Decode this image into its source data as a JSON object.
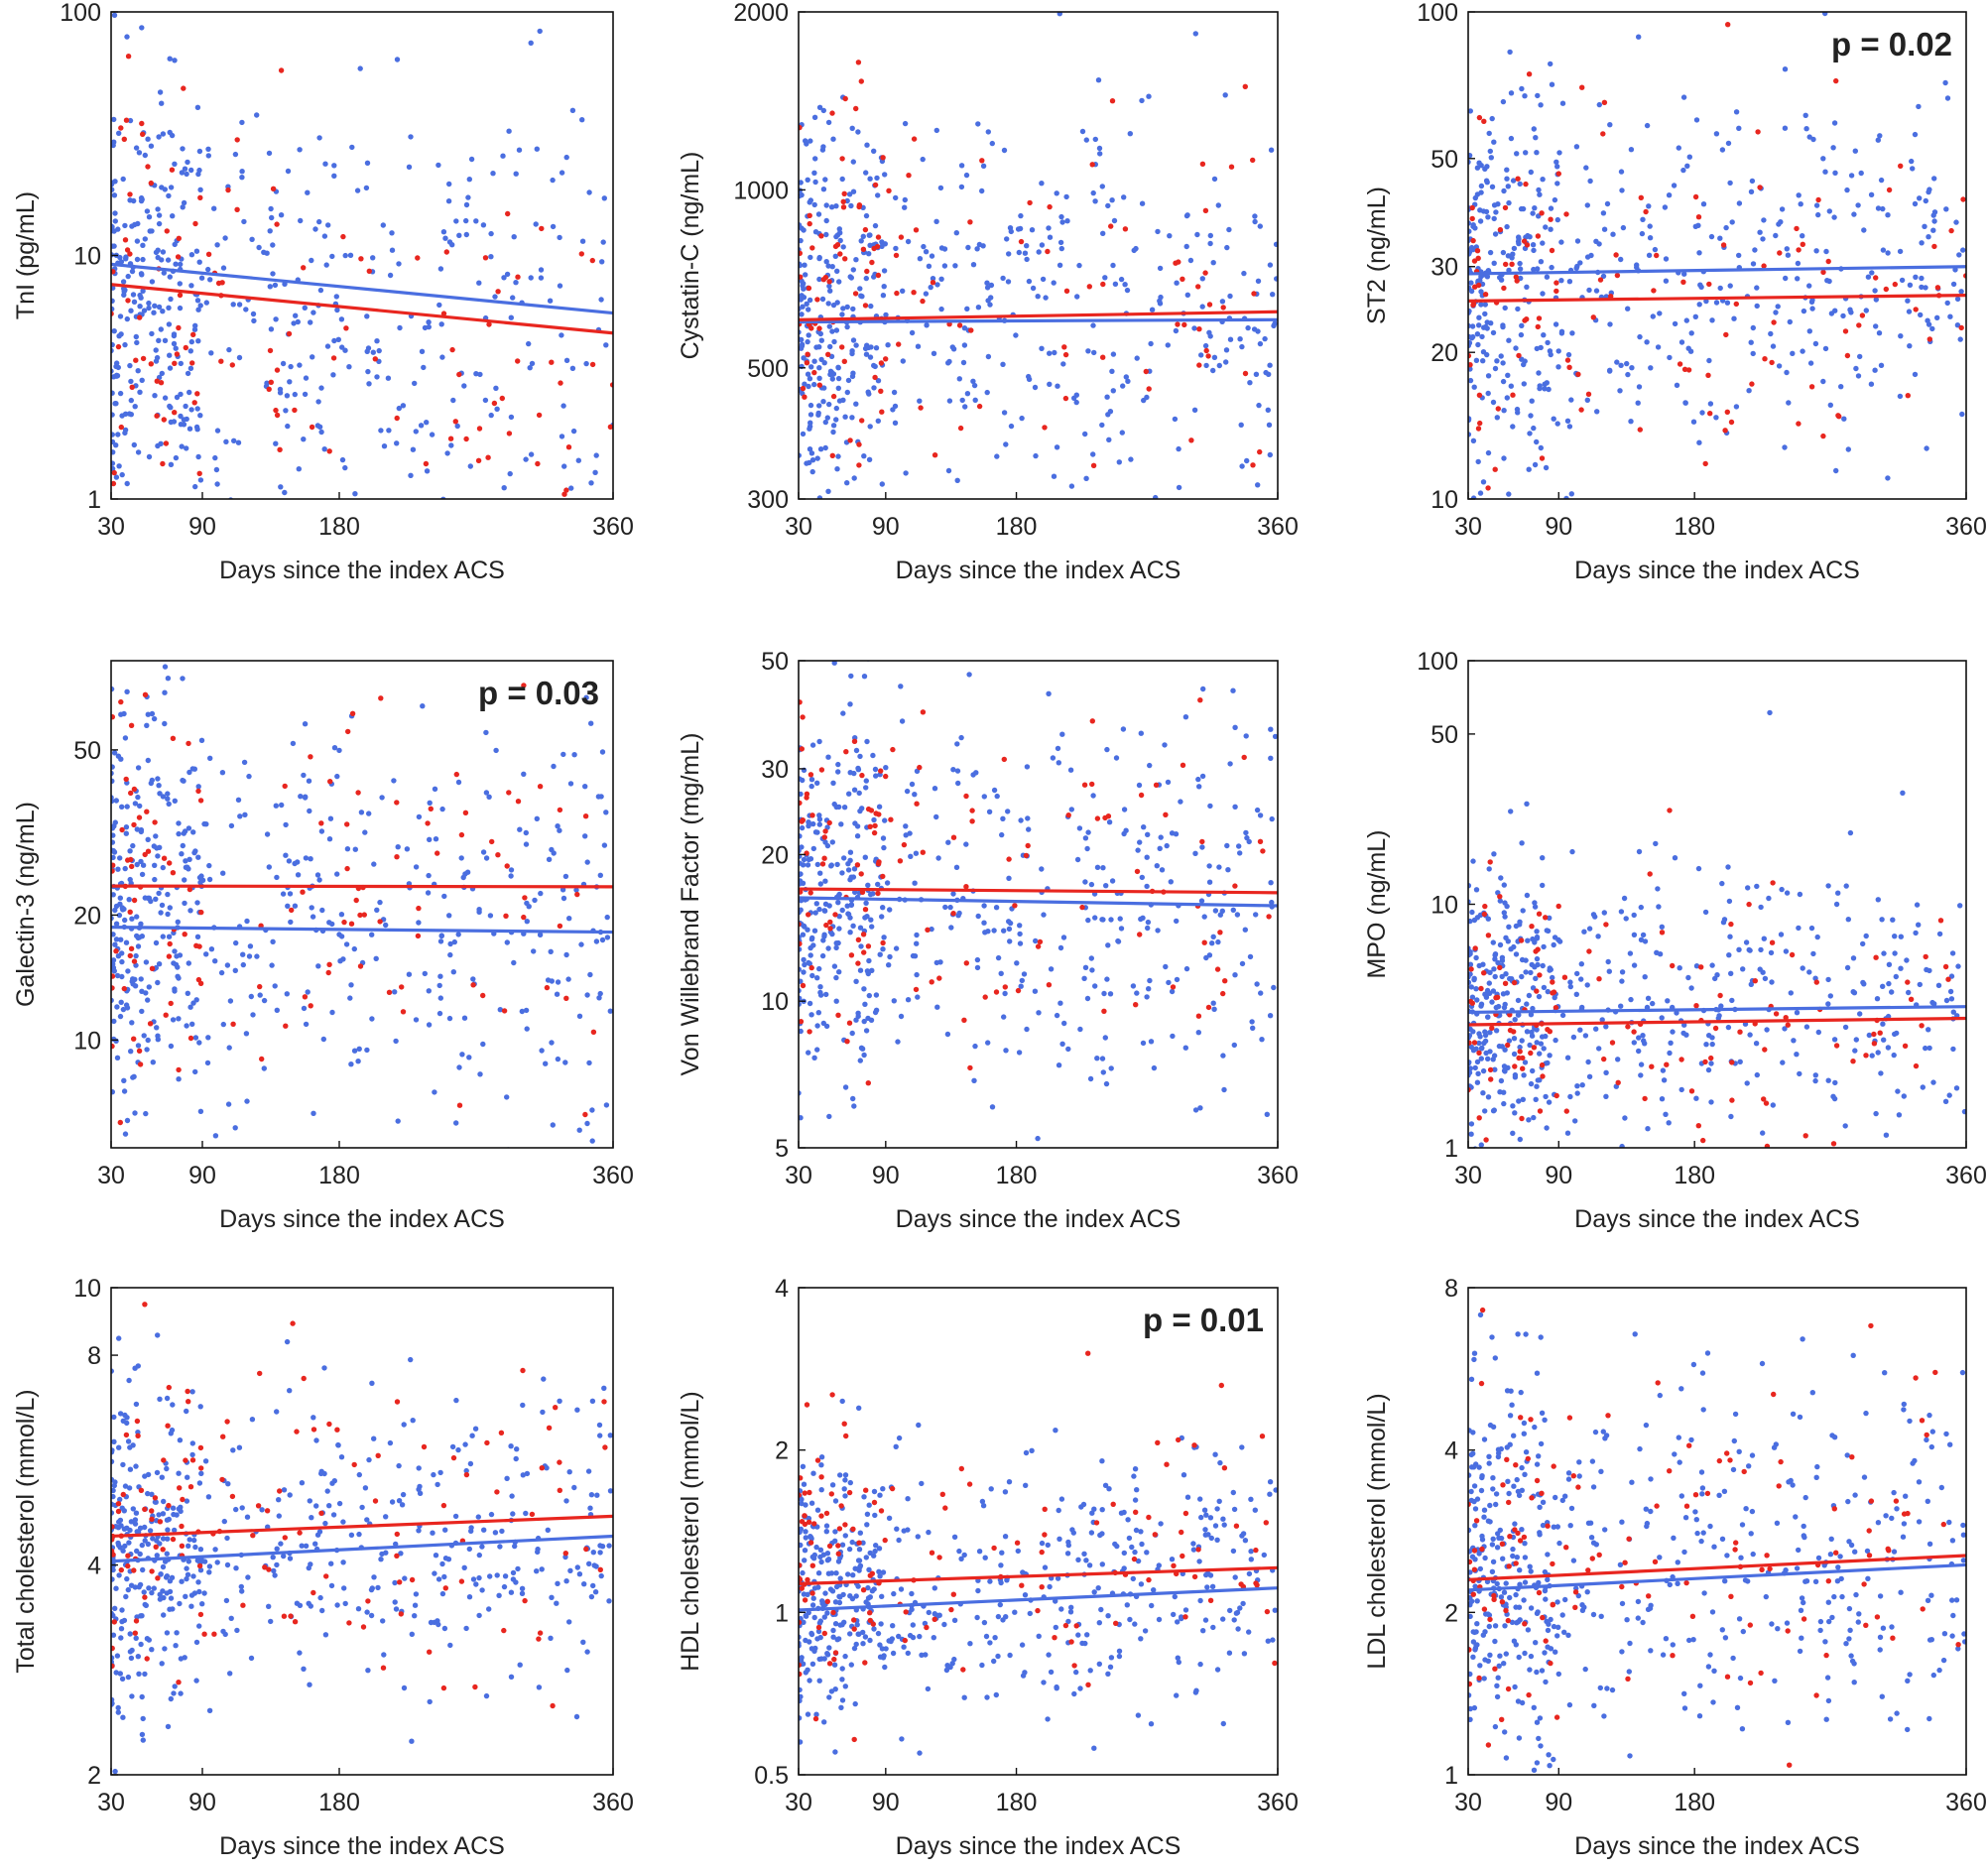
{
  "figure": {
    "series_colors": {
      "group_red": "#e8261f",
      "group_blue": "#4a6ee0"
    }
  },
  "chart_data": [
    {
      "type": "scatter",
      "panel": "TnI",
      "ylabel": "TnI (pg/mL)",
      "xlabel": "Days since the index ACS",
      "xlim": [
        30,
        360
      ],
      "xticks": [
        "30",
        "90",
        "180",
        "360"
      ],
      "ylim": [
        1,
        100
      ],
      "yscale": "log",
      "yticks": [
        "1",
        "10",
        "100"
      ],
      "p_value": "",
      "trend_lines": [
        {
          "series": "blue",
          "color": "#4a6ee0",
          "y_at_30": 9.2,
          "y_at_360": 5.8
        },
        {
          "series": "red",
          "color": "#e8261f",
          "y_at_30": 7.6,
          "y_at_360": 4.8
        }
      ],
      "scatter": {
        "n_blue": 560,
        "n_red": 130,
        "center": 6.5,
        "spread": 0.5,
        "trend": -0.2,
        "red_shift": -0.08
      }
    },
    {
      "type": "scatter",
      "panel": "Cystatin-C",
      "ylabel": "Cystatin-C (ng/mL)",
      "xlabel": "Days since the index ACS",
      "xlim": [
        30,
        360
      ],
      "xticks": [
        "30",
        "90",
        "180",
        "360"
      ],
      "ylim": [
        300,
        2000
      ],
      "yscale": "log",
      "yticks": [
        "300",
        "500",
        "1000",
        "2000"
      ],
      "p_value": "",
      "trend_lines": [
        {
          "series": "blue",
          "color": "#4a6ee0",
          "y_at_30": 598,
          "y_at_360": 603
        },
        {
          "series": "red",
          "color": "#e8261f",
          "y_at_30": 603,
          "y_at_360": 622
        }
      ],
      "scatter": {
        "n_blue": 560,
        "n_red": 130,
        "center": 620,
        "spread": 0.16,
        "trend": 0.0,
        "red_shift": 0.01
      }
    },
    {
      "type": "scatter",
      "panel": "ST2",
      "ylabel": "ST2 (ng/mL)",
      "xlabel": "Days since the index ACS",
      "xlim": [
        30,
        360
      ],
      "xticks": [
        "30",
        "90",
        "180",
        "360"
      ],
      "ylim": [
        10,
        100
      ],
      "yscale": "log",
      "yticks": [
        "10",
        "20",
        "30",
        "50",
        "100"
      ],
      "p_value": "p = 0.02",
      "trend_lines": [
        {
          "series": "blue",
          "color": "#4a6ee0",
          "y_at_30": 29.0,
          "y_at_360": 30.0
        },
        {
          "series": "red",
          "color": "#e8261f",
          "y_at_30": 25.5,
          "y_at_360": 26.2
        }
      ],
      "scatter": {
        "n_blue": 560,
        "n_red": 130,
        "center": 28,
        "spread": 0.19,
        "trend": 0.02,
        "red_shift": -0.05
      }
    },
    {
      "type": "scatter",
      "panel": "Galectin-3",
      "ylabel": "Galectin-3 (ng/mL)",
      "xlabel": "Days since the index ACS",
      "xlim": [
        30,
        360
      ],
      "xticks": [
        "30",
        "90",
        "180",
        "360"
      ],
      "ylim": [
        5.5,
        82
      ],
      "yscale": "log",
      "yticks": [
        "10",
        "20",
        "50"
      ],
      "p_value": "p = 0.03",
      "trend_lines": [
        {
          "series": "blue",
          "color": "#4a6ee0",
          "y_at_30": 18.7,
          "y_at_360": 18.2
        },
        {
          "series": "red",
          "color": "#e8261f",
          "y_at_30": 23.5,
          "y_at_360": 23.4
        }
      ],
      "scatter": {
        "n_blue": 560,
        "n_red": 130,
        "center": 20,
        "spread": 0.27,
        "trend": 0.0,
        "red_shift": 0.08
      }
    },
    {
      "type": "scatter",
      "panel": "Von Willebrand Factor",
      "ylabel": "Von Willebrand Factor (mg/mL)",
      "xlabel": "Days since the index ACS",
      "xlim": [
        30,
        360
      ],
      "xticks": [
        "30",
        "90",
        "180",
        "360"
      ],
      "ylim": [
        5,
        50
      ],
      "yscale": "log",
      "yticks": [
        "5",
        "10",
        "20",
        "30",
        "50"
      ],
      "p_value": "",
      "trend_lines": [
        {
          "series": "blue",
          "color": "#4a6ee0",
          "y_at_30": 16.3,
          "y_at_360": 15.7
        },
        {
          "series": "red",
          "color": "#e8261f",
          "y_at_30": 17.0,
          "y_at_360": 16.7
        }
      ],
      "scatter": {
        "n_blue": 560,
        "n_red": 130,
        "center": 16.5,
        "spread": 0.2,
        "trend": -0.03,
        "red_shift": 0.02
      }
    },
    {
      "type": "scatter",
      "panel": "MPO",
      "ylabel": "MPO (ng/mL)",
      "xlabel": "Days since the index ACS",
      "xlim": [
        30,
        360
      ],
      "xticks": [
        "30",
        "90",
        "180",
        "360"
      ],
      "ylim": [
        1,
        100
      ],
      "yscale": "log",
      "yticks": [
        "1",
        "10",
        "50",
        "100"
      ],
      "p_value": "",
      "trend_lines": [
        {
          "series": "blue",
          "color": "#4a6ee0",
          "y_at_30": 3.6,
          "y_at_360": 3.8
        },
        {
          "series": "red",
          "color": "#e8261f",
          "y_at_30": 3.2,
          "y_at_360": 3.4
        }
      ],
      "scatter": {
        "n_blue": 560,
        "n_red": 130,
        "center": 3.6,
        "spread": 0.3,
        "trend": 0.02,
        "red_shift": -0.04
      }
    },
    {
      "type": "scatter",
      "panel": "Total cholesterol",
      "ylabel": "Total cholesterol (mmol/L)",
      "xlabel": "Days since the index ACS",
      "xlim": [
        30,
        360
      ],
      "xticks": [
        "30",
        "90",
        "180",
        "360"
      ],
      "ylim": [
        2,
        10
      ],
      "yscale": "log",
      "yticks": [
        "2",
        "4",
        "8",
        "10"
      ],
      "p_value": "",
      "trend_lines": [
        {
          "series": "blue",
          "color": "#4a6ee0",
          "y_at_30": 4.05,
          "y_at_360": 4.4
        },
        {
          "series": "red",
          "color": "#e8261f",
          "y_at_30": 4.4,
          "y_at_360": 4.7
        }
      ],
      "scatter": {
        "n_blue": 560,
        "n_red": 130,
        "center": 4.2,
        "spread": 0.11,
        "trend": 0.03,
        "red_shift": 0.03
      }
    },
    {
      "type": "scatter",
      "panel": "HDL cholesterol",
      "ylabel": "HDL cholesterol (mmol/L)",
      "xlabel": "Days since the index ACS",
      "xlim": [
        30,
        360
      ],
      "xticks": [
        "30",
        "90",
        "180",
        "360"
      ],
      "ylim": [
        0.5,
        4
      ],
      "yscale": "log",
      "yticks": [
        "0.5",
        "1",
        "2",
        "4"
      ],
      "p_value": "p = 0.01",
      "trend_lines": [
        {
          "series": "blue",
          "color": "#4a6ee0",
          "y_at_30": 1.01,
          "y_at_360": 1.11
        },
        {
          "series": "red",
          "color": "#e8261f",
          "y_at_30": 1.13,
          "y_at_360": 1.21
        }
      ],
      "scatter": {
        "n_blue": 560,
        "n_red": 130,
        "center": 1.08,
        "spread": 0.12,
        "trend": 0.04,
        "red_shift": 0.05
      }
    },
    {
      "type": "scatter",
      "panel": "LDL cholesterol",
      "ylabel": "LDL cholesterol (mmol/L)",
      "xlabel": "Days since the index ACS",
      "xlim": [
        30,
        360
      ],
      "xticks": [
        "30",
        "90",
        "180",
        "360"
      ],
      "ylim": [
        1,
        8
      ],
      "yscale": "log",
      "yticks": [
        "1",
        "2",
        "4",
        "8"
      ],
      "p_value": "",
      "trend_lines": [
        {
          "series": "blue",
          "color": "#4a6ee0",
          "y_at_30": 2.2,
          "y_at_360": 2.45
        },
        {
          "series": "red",
          "color": "#e8261f",
          "y_at_30": 2.3,
          "y_at_360": 2.55
        }
      ],
      "scatter": {
        "n_blue": 560,
        "n_red": 130,
        "center": 2.35,
        "spread": 0.17,
        "trend": 0.04,
        "red_shift": 0.02
      }
    }
  ]
}
